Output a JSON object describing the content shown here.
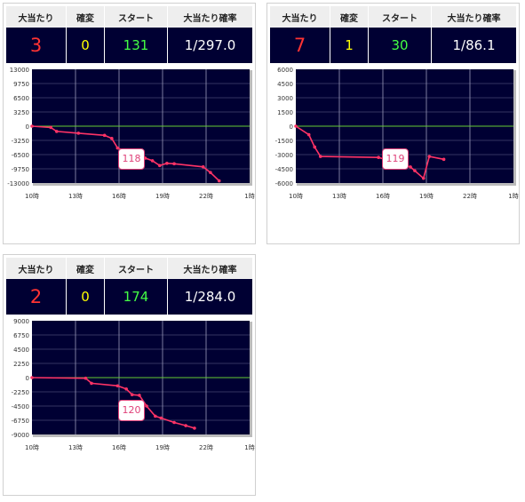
{
  "headers": {
    "hits": "大当たり",
    "kakuhen": "確変",
    "start": "スタート",
    "prob": "大当たり確率"
  },
  "colors": {
    "panel_bg": "#000033",
    "line": "#ff3366",
    "zero_line": "#66cc33",
    "grid": "#6a6a90",
    "hits": "#ff3333",
    "kakuhen": "#ffff00",
    "start": "#44ff44"
  },
  "machines": [
    {
      "hits": "3",
      "kakuhen": "0",
      "start": "131",
      "prob": "1/297.0",
      "machine_no": "118",
      "chart_data": {
        "type": "line",
        "x_ticks": [
          "10時",
          "13時",
          "16時",
          "19時",
          "22時",
          "1時"
        ],
        "y_ticks": [
          "13000",
          "9750",
          "6500",
          "3250",
          "0",
          "-3250",
          "-6500",
          "-9750",
          "-13000"
        ],
        "ylim": [
          -13000,
          13000
        ],
        "xlim_hours": [
          10,
          25
        ],
        "series": [
          {
            "x": [
              10,
              11.3,
              11.7,
              13.2,
              15.0,
              15.5,
              15.9,
              16.3,
              16.8,
              17.3,
              17.8,
              18.3,
              18.8,
              19.3,
              19.8,
              21.8,
              22.3,
              22.9
            ],
            "y": [
              0,
              -300,
              -1200,
              -1600,
              -2100,
              -2800,
              -5000,
              -5500,
              -5900,
              -6000,
              -7300,
              -7900,
              -9000,
              -8500,
              -8600,
              -9300,
              -10600,
              -12500
            ]
          }
        ]
      }
    },
    {
      "hits": "7",
      "kakuhen": "1",
      "start": "30",
      "prob": "1/86.1",
      "machine_no": "119",
      "chart_data": {
        "type": "line",
        "x_ticks": [
          "10時",
          "13時",
          "16時",
          "19時",
          "22時",
          "1時"
        ],
        "y_ticks": [
          "6000",
          "4500",
          "3000",
          "1500",
          "0",
          "-1500",
          "-3000",
          "-4500",
          "-6000"
        ],
        "ylim": [
          -6000,
          6000
        ],
        "xlim_hours": [
          10,
          25
        ],
        "series": [
          {
            "x": [
              10,
              10.9,
              11.3,
              11.7,
              15.7,
              17.9,
              18.2,
              18.8,
              19.2,
              20.2
            ],
            "y": [
              0,
              -900,
              -2200,
              -3200,
              -3300,
              -4300,
              -4700,
              -5500,
              -3200,
              -3500
            ]
          }
        ]
      }
    },
    {
      "hits": "2",
      "kakuhen": "0",
      "start": "174",
      "prob": "1/284.0",
      "machine_no": "120",
      "chart_data": {
        "type": "line",
        "x_ticks": [
          "10時",
          "13時",
          "16時",
          "19時",
          "22時",
          "1時"
        ],
        "y_ticks": [
          "9000",
          "6750",
          "4500",
          "2250",
          "0",
          "-2250",
          "-4500",
          "-6750",
          "-9000"
        ],
        "ylim": [
          -9000,
          9000
        ],
        "xlim_hours": [
          10,
          25
        ],
        "series": [
          {
            "x": [
              10,
              13.7,
              14.1,
              15.9,
              16.5,
              16.9,
              17.4,
              17.9,
              18.5,
              18.9,
              19.8,
              20.6,
              21.2
            ],
            "y": [
              0,
              -100,
              -900,
              -1300,
              -1800,
              -2700,
              -2800,
              -4500,
              -6100,
              -6400,
              -7100,
              -7600,
              -8000
            ]
          }
        ]
      }
    }
  ]
}
